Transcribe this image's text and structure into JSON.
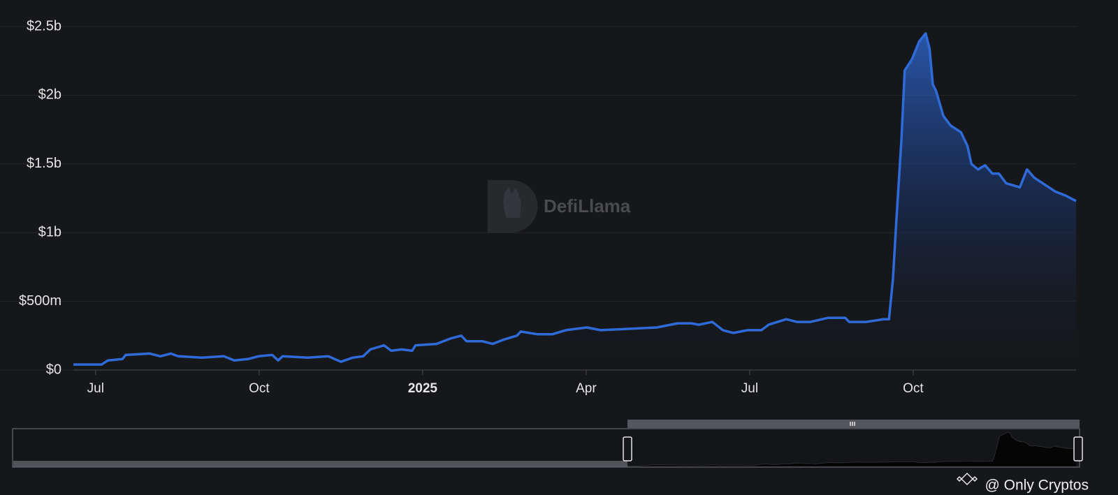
{
  "chart_data": {
    "type": "area",
    "color": "#2f6bd8",
    "watermark": "DefiLlama",
    "credit": "@ Only Cryptos",
    "grid": true,
    "xlim": [
      2024.466,
      2025.999
    ],
    "xticks": [
      {
        "value": 2024.5,
        "label": "Jul"
      },
      {
        "value": 2024.75,
        "label": "Oct"
      },
      2025,
      {
        "value": 2025.25,
        "label": "Apr"
      },
      {
        "value": 2025.5,
        "label": "Jul"
      },
      {
        "value": 2025.75,
        "label": "Oct"
      }
    ],
    "ylim": [
      0,
      2.5
    ],
    "yticks": [
      {
        "value": 0,
        "label": "$0"
      },
      {
        "value": 0.5,
        "label": "$500m"
      },
      {
        "value": 1,
        "label": "$1b"
      },
      {
        "value": 1.5,
        "label": "$1.5b"
      },
      {
        "value": 2,
        "label": "$2b"
      },
      {
        "value": 2.5,
        "label": "$2.5b"
      }
    ],
    "x": [
      2024.466,
      2024.509,
      2024.519,
      2024.541,
      2024.546,
      2024.583,
      2024.599,
      2024.615,
      2024.626,
      2024.663,
      2024.696,
      2024.712,
      2024.733,
      2024.749,
      2024.77,
      2024.779,
      2024.786,
      2024.824,
      2024.856,
      2024.875,
      2024.893,
      2024.909,
      2024.92,
      2024.941,
      2024.952,
      2024.968,
      2024.984,
      2024.989,
      2025.021,
      2025.043,
      2025.059,
      2025.067,
      2025.091,
      2025.107,
      2025.123,
      2025.144,
      2025.15,
      2025.176,
      2025.198,
      2025.219,
      2025.251,
      2025.272,
      2025.315,
      2025.358,
      2025.39,
      2025.411,
      2025.422,
      2025.443,
      2025.459,
      2025.475,
      2025.497,
      2025.518,
      2025.529,
      2025.556,
      2025.572,
      2025.593,
      2025.62,
      2025.646,
      2025.652,
      2025.678,
      2025.705,
      2025.713,
      2025.719,
      2025.724,
      2025.732,
      2025.737,
      2025.748,
      2025.759,
      2025.769,
      2025.775,
      2025.78,
      2025.785,
      2025.796,
      2025.807,
      2025.823,
      2025.833,
      2025.839,
      2025.849,
      2025.86,
      2025.871,
      2025.881,
      2025.892,
      2025.913,
      2025.924,
      2025.935,
      2025.951,
      2025.967,
      2025.983,
      2025.999
    ],
    "values": [
      0.04,
      0.04,
      0.07,
      0.08,
      0.11,
      0.12,
      0.1,
      0.12,
      0.1,
      0.09,
      0.1,
      0.07,
      0.08,
      0.1,
      0.11,
      0.07,
      0.1,
      0.09,
      0.1,
      0.06,
      0.09,
      0.1,
      0.15,
      0.18,
      0.14,
      0.15,
      0.14,
      0.18,
      0.19,
      0.23,
      0.25,
      0.21,
      0.21,
      0.19,
      0.22,
      0.25,
      0.28,
      0.26,
      0.26,
      0.29,
      0.31,
      0.29,
      0.3,
      0.31,
      0.34,
      0.34,
      0.33,
      0.35,
      0.29,
      0.27,
      0.29,
      0.29,
      0.33,
      0.37,
      0.35,
      0.35,
      0.38,
      0.38,
      0.35,
      0.35,
      0.37,
      0.37,
      0.66,
      1.07,
      1.68,
      2.18,
      2.26,
      2.39,
      2.45,
      2.34,
      2.08,
      2.03,
      1.85,
      1.78,
      1.73,
      1.63,
      1.5,
      1.46,
      1.49,
      1.43,
      1.43,
      1.36,
      1.33,
      1.46,
      1.4,
      1.35,
      1.3,
      1.27,
      1.23
    ]
  }
}
